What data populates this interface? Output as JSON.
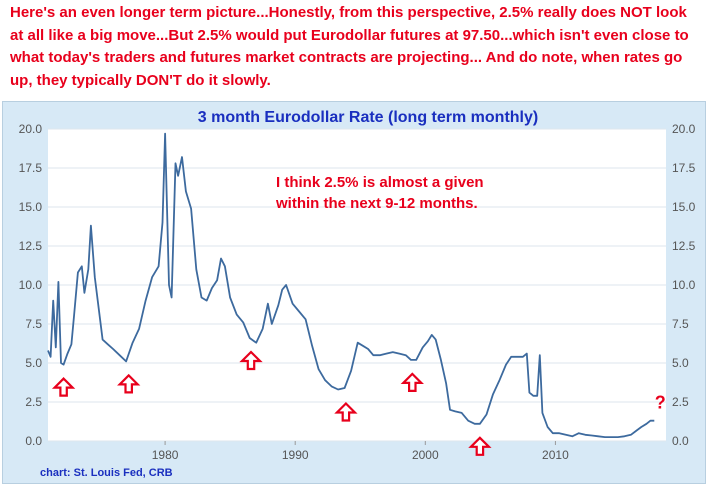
{
  "headline": "Here's an even longer term picture...Honestly, from this perspective, 2.5% really does NOT look at all like a big move...But 2.5% would put Eurodollar futures at 97.50...which isn't even close to what today's traders and futures market contracts are projecting... And do note, when rates go up, they typically DON'T do it slowly.",
  "colors": {
    "headline": "#e8001c",
    "title": "#1a2fbf",
    "line": "#3d6a9e",
    "annotation": "#e8001c",
    "arrow": "#e8001c",
    "frame_bg": "#d7e9f6",
    "plot_bg": "#ffffff",
    "credit": "#1a2fbf"
  },
  "chart_data": {
    "type": "line",
    "title": "3 month Eurodollar Rate (long term monthly)",
    "xlabel": "",
    "ylabel": "",
    "xlim": [
      1971.0,
      2018.5
    ],
    "ylim": [
      0,
      20
    ],
    "x_ticks": [
      1980,
      1990,
      2000,
      2010
    ],
    "y_ticks": [
      "0.0",
      "2.5",
      "5.0",
      "7.5",
      "10.0",
      "12.5",
      "15.0",
      "17.5",
      "20.0"
    ],
    "grid": "horizontal",
    "y_axis_labels": "left-and-right",
    "series": [
      {
        "name": "",
        "x": [
          1971.0,
          1971.2,
          1971.4,
          1971.6,
          1971.8,
          1972.0,
          1972.2,
          1972.5,
          1972.8,
          1973.0,
          1973.3,
          1973.6,
          1973.8,
          1974.1,
          1974.3,
          1974.6,
          1974.9,
          1975.2,
          1975.6,
          1976.0,
          1976.5,
          1977.0,
          1977.5,
          1978.0,
          1978.5,
          1979.0,
          1979.5,
          1979.8,
          1980.0,
          1980.3,
          1980.5,
          1980.8,
          1981.0,
          1981.3,
          1981.6,
          1982.0,
          1982.4,
          1982.8,
          1983.2,
          1983.6,
          1984.0,
          1984.3,
          1984.6,
          1985.0,
          1985.5,
          1986.0,
          1986.5,
          1987.0,
          1987.5,
          1987.9,
          1988.2,
          1988.7,
          1989.0,
          1989.3,
          1989.8,
          1990.3,
          1990.8,
          1991.3,
          1991.8,
          1992.3,
          1992.8,
          1993.3,
          1993.8,
          1994.3,
          1994.8,
          1995.2,
          1995.6,
          1996.0,
          1996.5,
          1997.0,
          1997.5,
          1998.0,
          1998.5,
          1998.9,
          1999.3,
          1999.8,
          2000.2,
          2000.5,
          2000.8,
          2001.2,
          2001.6,
          2001.9,
          2002.3,
          2002.8,
          2003.3,
          2003.8,
          2004.2,
          2004.7,
          2005.2,
          2005.7,
          2006.2,
          2006.6,
          2007.0,
          2007.5,
          2007.8,
          2008.0,
          2008.3,
          2008.6,
          2008.8,
          2009.0,
          2009.4,
          2009.8,
          2010.3,
          2010.8,
          2011.3,
          2011.8,
          2012.3,
          2012.8,
          2013.3,
          2013.8,
          2014.3,
          2014.8,
          2015.3,
          2015.8,
          2016.2,
          2016.6,
          2017.0,
          2017.3,
          2017.6
        ],
        "y": [
          5.8,
          5.4,
          9.0,
          6.0,
          10.2,
          5.0,
          4.9,
          5.6,
          6.2,
          8.0,
          10.8,
          11.2,
          9.5,
          11.0,
          13.8,
          10.5,
          8.5,
          6.5,
          6.2,
          5.9,
          5.5,
          5.1,
          6.3,
          7.2,
          9.0,
          10.5,
          11.2,
          14.0,
          19.7,
          10.0,
          9.2,
          17.8,
          17.0,
          18.2,
          16.0,
          14.9,
          11.0,
          9.2,
          9.0,
          9.8,
          10.3,
          11.7,
          11.2,
          9.2,
          8.1,
          7.6,
          6.6,
          6.3,
          7.2,
          8.8,
          7.5,
          8.7,
          9.7,
          10.0,
          8.8,
          8.3,
          7.8,
          6.1,
          4.6,
          3.9,
          3.5,
          3.3,
          3.4,
          4.5,
          6.3,
          6.1,
          5.9,
          5.5,
          5.5,
          5.6,
          5.7,
          5.6,
          5.5,
          5.2,
          5.2,
          6.0,
          6.4,
          6.8,
          6.5,
          5.2,
          3.7,
          2.0,
          1.9,
          1.8,
          1.3,
          1.1,
          1.1,
          1.7,
          3.0,
          3.9,
          4.9,
          5.4,
          5.4,
          5.4,
          5.6,
          3.1,
          2.9,
          2.9,
          5.5,
          1.8,
          0.9,
          0.5,
          0.5,
          0.4,
          0.3,
          0.5,
          0.4,
          0.35,
          0.3,
          0.25,
          0.25,
          0.25,
          0.3,
          0.4,
          0.65,
          0.9,
          1.1,
          1.3,
          1.3
        ]
      }
    ],
    "annotation_text": "I think 2.5% is almost a given within the next 9-12 months.",
    "annotation_lines": [
      "I think 2.5% is almost a given",
      "within the next 9-12 months."
    ],
    "question_mark": "?",
    "arrow_markers": [
      {
        "x": 1972.2,
        "y": 4.9
      },
      {
        "x": 1977.2,
        "y": 5.1
      },
      {
        "x": 1986.6,
        "y": 6.6
      },
      {
        "x": 1993.9,
        "y": 3.3
      },
      {
        "x": 1999.0,
        "y": 5.2
      },
      {
        "x": 2004.2,
        "y": 1.1
      }
    ],
    "credit": "chart: St. Louis Fed, CRB"
  }
}
